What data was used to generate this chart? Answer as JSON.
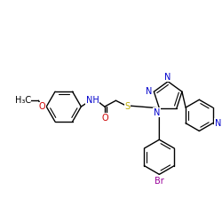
{
  "bg_color": "#ffffff",
  "atom_colors": {
    "N": "#0000cc",
    "O": "#cc0000",
    "S": "#bbaa00",
    "Br": "#990099",
    "C": "#000000"
  },
  "bond_color": "#000000",
  "bond_lw": 1.0,
  "inner_lw": 0.8,
  "font_size": 7.0,
  "fig_size": [
    2.5,
    2.5
  ],
  "dpi": 100
}
